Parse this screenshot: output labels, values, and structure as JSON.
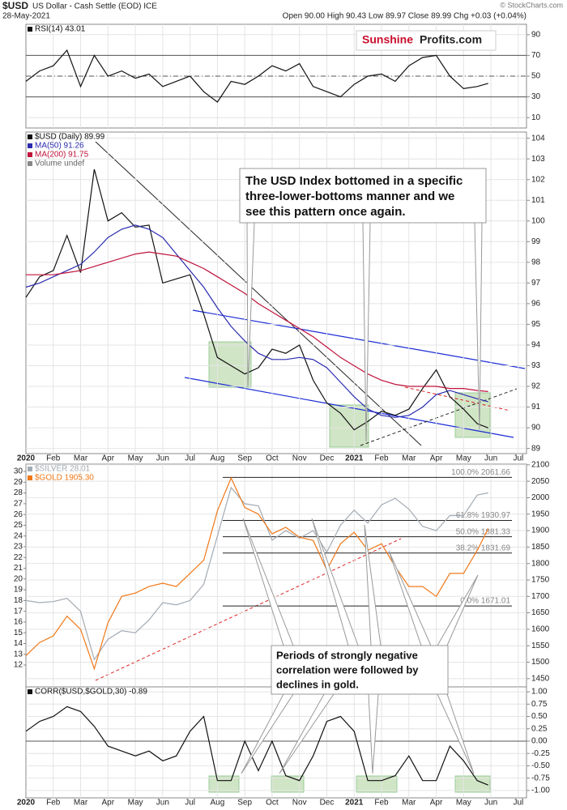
{
  "header": {
    "symbol": "$USD",
    "name": "US Dollar - Cash Settle (EOD) ICE",
    "date": "28-May-2021",
    "ohlc": "Open 90.00 High 90.43 Low 89.97 Close 89.99 Chg +0.03 (+0.04%)",
    "credit": "© StockCharts.com"
  },
  "logo": {
    "part1": "Sunshine",
    "part2": "Profits.com"
  },
  "chart_data": [
    {
      "type": "line",
      "x": [
        0,
        0.5,
        1,
        1.5,
        2,
        2.5,
        3,
        3.5,
        4,
        4.5,
        5,
        5.5,
        6,
        6.5,
        7,
        7.5,
        8,
        8.5,
        9,
        9.5,
        10,
        10.5,
        11,
        11.5,
        12,
        12.5,
        13,
        13.5,
        14,
        14.5,
        15,
        15.5,
        16,
        16.5,
        16.9
      ],
      "xlim": [
        0,
        18.3
      ],
      "ylim": [
        0,
        100
      ],
      "yticks": [
        10,
        30,
        50,
        70,
        90
      ],
      "ref_lines": [
        30,
        50,
        70
      ],
      "series": [
        {
          "name": "RSI(14) 43.01",
          "color": "#111111",
          "values": [
            45,
            55,
            60,
            75,
            40,
            70,
            50,
            55,
            48,
            52,
            40,
            45,
            50,
            35,
            25,
            45,
            42,
            50,
            60,
            55,
            62,
            40,
            35,
            30,
            42,
            50,
            52,
            45,
            60,
            68,
            70,
            50,
            38,
            40,
            43.01
          ]
        }
      ]
    },
    {
      "type": "line",
      "x": [
        0,
        0.5,
        1,
        1.5,
        2,
        2.5,
        3,
        3.5,
        4,
        4.5,
        5,
        5.5,
        6,
        6.5,
        7,
        7.5,
        8,
        8.5,
        9,
        9.5,
        10,
        10.5,
        11,
        11.5,
        12,
        12.5,
        13,
        13.5,
        14,
        14.5,
        15,
        15.5,
        16,
        16.5,
        16.9
      ],
      "xlim": [
        0,
        18.3
      ],
      "xticks": [
        {
          "value": 0,
          "label": "2020"
        },
        {
          "value": 1,
          "label": "Feb"
        },
        {
          "value": 2,
          "label": "Mar"
        },
        {
          "value": 3,
          "label": "Apr"
        },
        {
          "value": 4,
          "label": "May"
        },
        {
          "value": 5,
          "label": "Jun"
        },
        {
          "value": 6,
          "label": "Jul"
        },
        {
          "value": 7,
          "label": "Aug"
        },
        {
          "value": 8,
          "label": "Sep"
        },
        {
          "value": 9,
          "label": "Oct"
        },
        {
          "value": 10,
          "label": "Nov"
        },
        {
          "value": 11,
          "label": "Dec"
        },
        {
          "value": 12,
          "label": "2021"
        },
        {
          "value": 13,
          "label": "Feb"
        },
        {
          "value": 14,
          "label": "Mar"
        },
        {
          "value": 15,
          "label": "Apr"
        },
        {
          "value": 16,
          "label": "May"
        },
        {
          "value": 17,
          "label": "Jun"
        },
        {
          "value": 18,
          "label": "Jul"
        }
      ],
      "ylim": [
        88.75,
        104.3
      ],
      "yticks": [
        89,
        90,
        91,
        92,
        93,
        94,
        95,
        96,
        97,
        98,
        99,
        100,
        101,
        102,
        103,
        104
      ],
      "legend_extra": "Volume undef",
      "annotation": [
        "The USD Index bottomed in a specific",
        "three-lower-bottoms manner and we",
        "see this pattern once again."
      ],
      "series": [
        {
          "name": "$USD (Daily) 89.99",
          "color": "#111111",
          "values": [
            96.3,
            97.3,
            97.6,
            99.3,
            97.5,
            102.5,
            100.0,
            100.4,
            99.7,
            99.8,
            97.0,
            97.2,
            97.4,
            95.5,
            93.4,
            93.0,
            92.6,
            92.9,
            93.8,
            93.6,
            94.0,
            92.3,
            91.2,
            90.7,
            89.9,
            90.3,
            90.8,
            90.6,
            90.9,
            91.9,
            92.8,
            91.5,
            90.9,
            90.2,
            89.99
          ]
        },
        {
          "name": "MA(50) 91.26",
          "color": "#2b2bb0",
          "values": [
            96.8,
            97.0,
            97.3,
            97.6,
            97.9,
            98.5,
            99.2,
            99.6,
            99.8,
            99.6,
            99.2,
            98.4,
            97.6,
            96.8,
            95.8,
            94.9,
            94.2,
            93.6,
            93.3,
            93.3,
            93.4,
            93.3,
            92.9,
            92.2,
            91.5,
            90.9,
            90.6,
            90.5,
            90.6,
            91.0,
            91.6,
            91.8,
            91.6,
            91.4,
            91.26
          ]
        },
        {
          "name": "MA(200) 91.75",
          "color": "#c0143c",
          "values": [
            97.4,
            97.4,
            97.4,
            97.5,
            97.6,
            97.8,
            98.0,
            98.2,
            98.4,
            98.5,
            98.4,
            98.3,
            98.0,
            97.7,
            97.3,
            96.9,
            96.5,
            96.0,
            95.6,
            95.2,
            94.8,
            94.4,
            93.9,
            93.4,
            93.0,
            92.6,
            92.3,
            92.1,
            92.0,
            92.0,
            92.0,
            91.9,
            91.9,
            91.8,
            91.75
          ]
        }
      ]
    },
    {
      "type": "line",
      "x": [
        0,
        0.5,
        1,
        1.5,
        2,
        2.5,
        3,
        3.5,
        4,
        4.5,
        5,
        5.5,
        6,
        6.5,
        7,
        7.5,
        8,
        8.5,
        9,
        9.5,
        10,
        10.5,
        11,
        11.5,
        12,
        12.5,
        13,
        13.5,
        14,
        14.5,
        15,
        15.5,
        16,
        16.5,
        16.9
      ],
      "xlim": [
        0,
        18.3
      ],
      "ylim": [
        1425,
        2102
      ],
      "yticks": [
        1450,
        1500,
        1550,
        1600,
        1650,
        1700,
        1750,
        1800,
        1850,
        1900,
        1950,
        2000,
        2050,
        2100
      ],
      "y2lim": [
        9.97,
        30.68
      ],
      "y2ticks": [
        12,
        13,
        14,
        15,
        16,
        17,
        18,
        19,
        20,
        21,
        22,
        23,
        24,
        25,
        26,
        27,
        28,
        29,
        30
      ],
      "levels": [
        {
          "value": 2061.66,
          "label": "100.0% 2061.66"
        },
        {
          "value": 1930.97,
          "label": "61.8% 1930.97"
        },
        {
          "value": 1881.33,
          "label": "50.0% 1881.33"
        },
        {
          "value": 1831.69,
          "label": "38.2% 1831.69"
        },
        {
          "value": 1671.01,
          "label": "0.0% 1671.01"
        }
      ],
      "annotation": [
        "Periods of strongly negative",
        "correlation were followed by",
        "declines in gold."
      ],
      "series": [
        {
          "name": "$SILVER 28.01",
          "color": "#a3abb3",
          "axis": "y2",
          "values": [
            18.0,
            17.8,
            17.9,
            18.2,
            17.0,
            12.5,
            14.4,
            15.2,
            15.0,
            16.2,
            17.8,
            17.6,
            18.0,
            19.5,
            24.0,
            28.5,
            27.0,
            26.8,
            23.6,
            24.5,
            23.8,
            24.5,
            22.5,
            25.0,
            26.4,
            25.2,
            26.9,
            27.5,
            26.5,
            24.9,
            24.5,
            25.9,
            25.9,
            27.8,
            28.01
          ]
        },
        {
          "name": "$GOLD 1905.30",
          "color": "#f07818",
          "values": [
            1520,
            1560,
            1580,
            1640,
            1600,
            1480,
            1620,
            1700,
            1710,
            1730,
            1740,
            1730,
            1770,
            1810,
            1960,
            2060,
            1970,
            1950,
            1890,
            1910,
            1880,
            1870,
            1780,
            1860,
            1895,
            1840,
            1860,
            1790,
            1730,
            1730,
            1700,
            1770,
            1770,
            1840,
            1905.3
          ]
        }
      ]
    },
    {
      "type": "line",
      "x": [
        0,
        0.5,
        1,
        1.5,
        2,
        2.5,
        3,
        3.5,
        4,
        4.5,
        5,
        5.5,
        6,
        6.5,
        7,
        7.5,
        8,
        8.5,
        9,
        9.5,
        10,
        10.5,
        11,
        11.5,
        12,
        12.5,
        13,
        13.5,
        14,
        14.5,
        15,
        15.5,
        16,
        16.5,
        16.9
      ],
      "xlim": [
        0,
        18.3
      ],
      "xticks": [
        {
          "value": 0,
          "label": "2020"
        },
        {
          "value": 1,
          "label": "Feb"
        },
        {
          "value": 2,
          "label": "Mar"
        },
        {
          "value": 3,
          "label": "Apr"
        },
        {
          "value": 4,
          "label": "May"
        },
        {
          "value": 5,
          "label": "Jun"
        },
        {
          "value": 6,
          "label": "Jul"
        },
        {
          "value": 7,
          "label": "Aug"
        },
        {
          "value": 8,
          "label": "Sep"
        },
        {
          "value": 9,
          "label": "Oct"
        },
        {
          "value": 10,
          "label": "Nov"
        },
        {
          "value": 11,
          "label": "Dec"
        },
        {
          "value": 12,
          "label": "2021"
        },
        {
          "value": 13,
          "label": "Feb"
        },
        {
          "value": 14,
          "label": "Mar"
        },
        {
          "value": 15,
          "label": "Apr"
        },
        {
          "value": 16,
          "label": "May"
        },
        {
          "value": 17,
          "label": "Jun"
        },
        {
          "value": 18,
          "label": "Jul"
        }
      ],
      "ylim": [
        -1.15,
        1.1
      ],
      "yticks": [
        {
          "value": 1,
          "label": "1.00"
        },
        0.75,
        {
          "value": 0.5,
          "label": "0.50"
        },
        0.25,
        {
          "value": 0,
          "label": "0.00"
        },
        -0.25,
        {
          "value": -0.5,
          "label": "-0.50"
        },
        -0.75,
        {
          "value": -1,
          "label": "-1.00"
        }
      ],
      "ref_lines": [
        0
      ],
      "series": [
        {
          "name": "CORR($USD,$GOLD,30) -0.89",
          "color": "#111111",
          "values": [
            0.2,
            0.4,
            0.5,
            0.7,
            0.6,
            0.3,
            -0.1,
            -0.2,
            -0.3,
            -0.2,
            -0.4,
            -0.3,
            0.2,
            0.5,
            -0.8,
            -0.8,
            0.0,
            -0.6,
            0.0,
            -0.7,
            -0.8,
            -0.3,
            0.4,
            0.5,
            0.2,
            -0.8,
            -0.8,
            -0.7,
            -0.3,
            -0.8,
            -0.8,
            -0.1,
            -0.4,
            -0.8,
            -0.89
          ]
        }
      ]
    }
  ]
}
